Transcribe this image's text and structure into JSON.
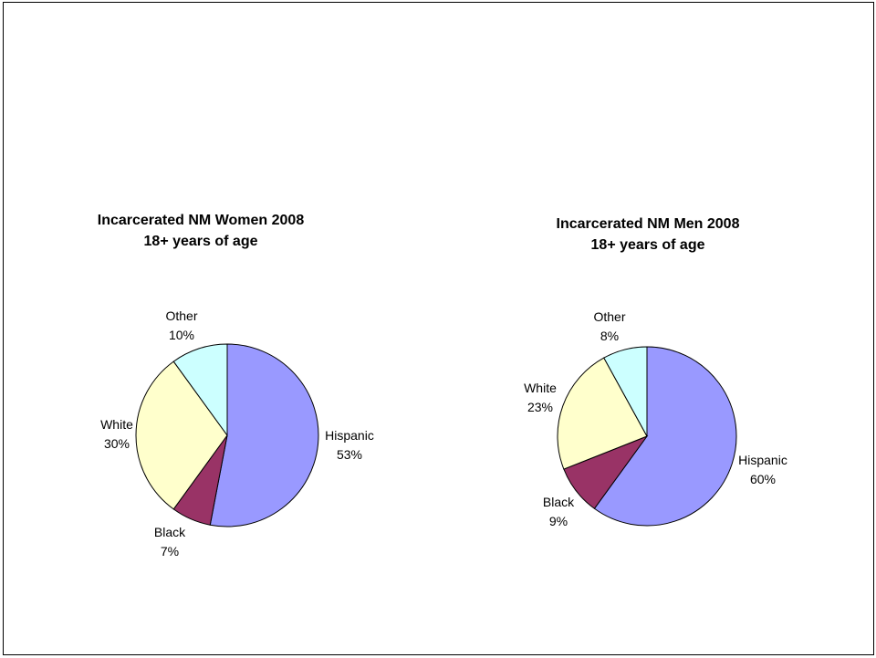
{
  "chart_data": [
    {
      "type": "pie",
      "title": "Incarcerated NM Women 2008",
      "subtitle": "18+ years of age",
      "slices": [
        {
          "label": "Hispanic",
          "value": 53,
          "value_label": "53%",
          "color": "#9999ff"
        },
        {
          "label": "Black",
          "value": 7,
          "value_label": "7%",
          "color": "#993366"
        },
        {
          "label": "White",
          "value": 30,
          "value_label": "30%",
          "color": "#ffffcc"
        },
        {
          "label": "Other",
          "value": 10,
          "value_label": "10%",
          "color": "#ccffff"
        }
      ]
    },
    {
      "type": "pie",
      "title": "Incarcerated NM Men 2008",
      "subtitle": "18+ years of age",
      "slices": [
        {
          "label": "Hispanic",
          "value": 60,
          "value_label": "60%",
          "color": "#9999ff"
        },
        {
          "label": "Black",
          "value": 9,
          "value_label": "9%",
          "color": "#993366"
        },
        {
          "label": "White",
          "value": 23,
          "value_label": "23%",
          "color": "#ffffcc"
        },
        {
          "label": "Other",
          "value": 8,
          "value_label": "8%",
          "color": "#ccffff"
        }
      ]
    }
  ]
}
